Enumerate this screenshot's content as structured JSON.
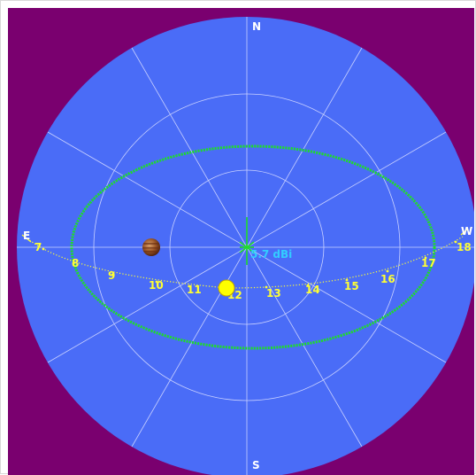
{
  "colors": {
    "background": "#7a006f",
    "sky": "#4a6cf7",
    "grid": "#c8d0ff",
    "compass_text": "#ffffff",
    "antenna_pattern": "#1fdc2a",
    "sun_path": "#ffff33",
    "sun": "#ffff00",
    "gain_text": "#33ccff"
  },
  "compass": {
    "north": "N",
    "south": "S",
    "east": "E",
    "west": "W"
  },
  "gain": {
    "label": "5.7 dBi"
  },
  "sun_path": {
    "hours": [
      "7",
      "8",
      "9",
      "10",
      "11",
      "12",
      "13",
      "14",
      "15",
      "16",
      "17",
      "18"
    ]
  },
  "objects": {
    "sun": "sun-icon",
    "planet": "jupiter-icon"
  }
}
